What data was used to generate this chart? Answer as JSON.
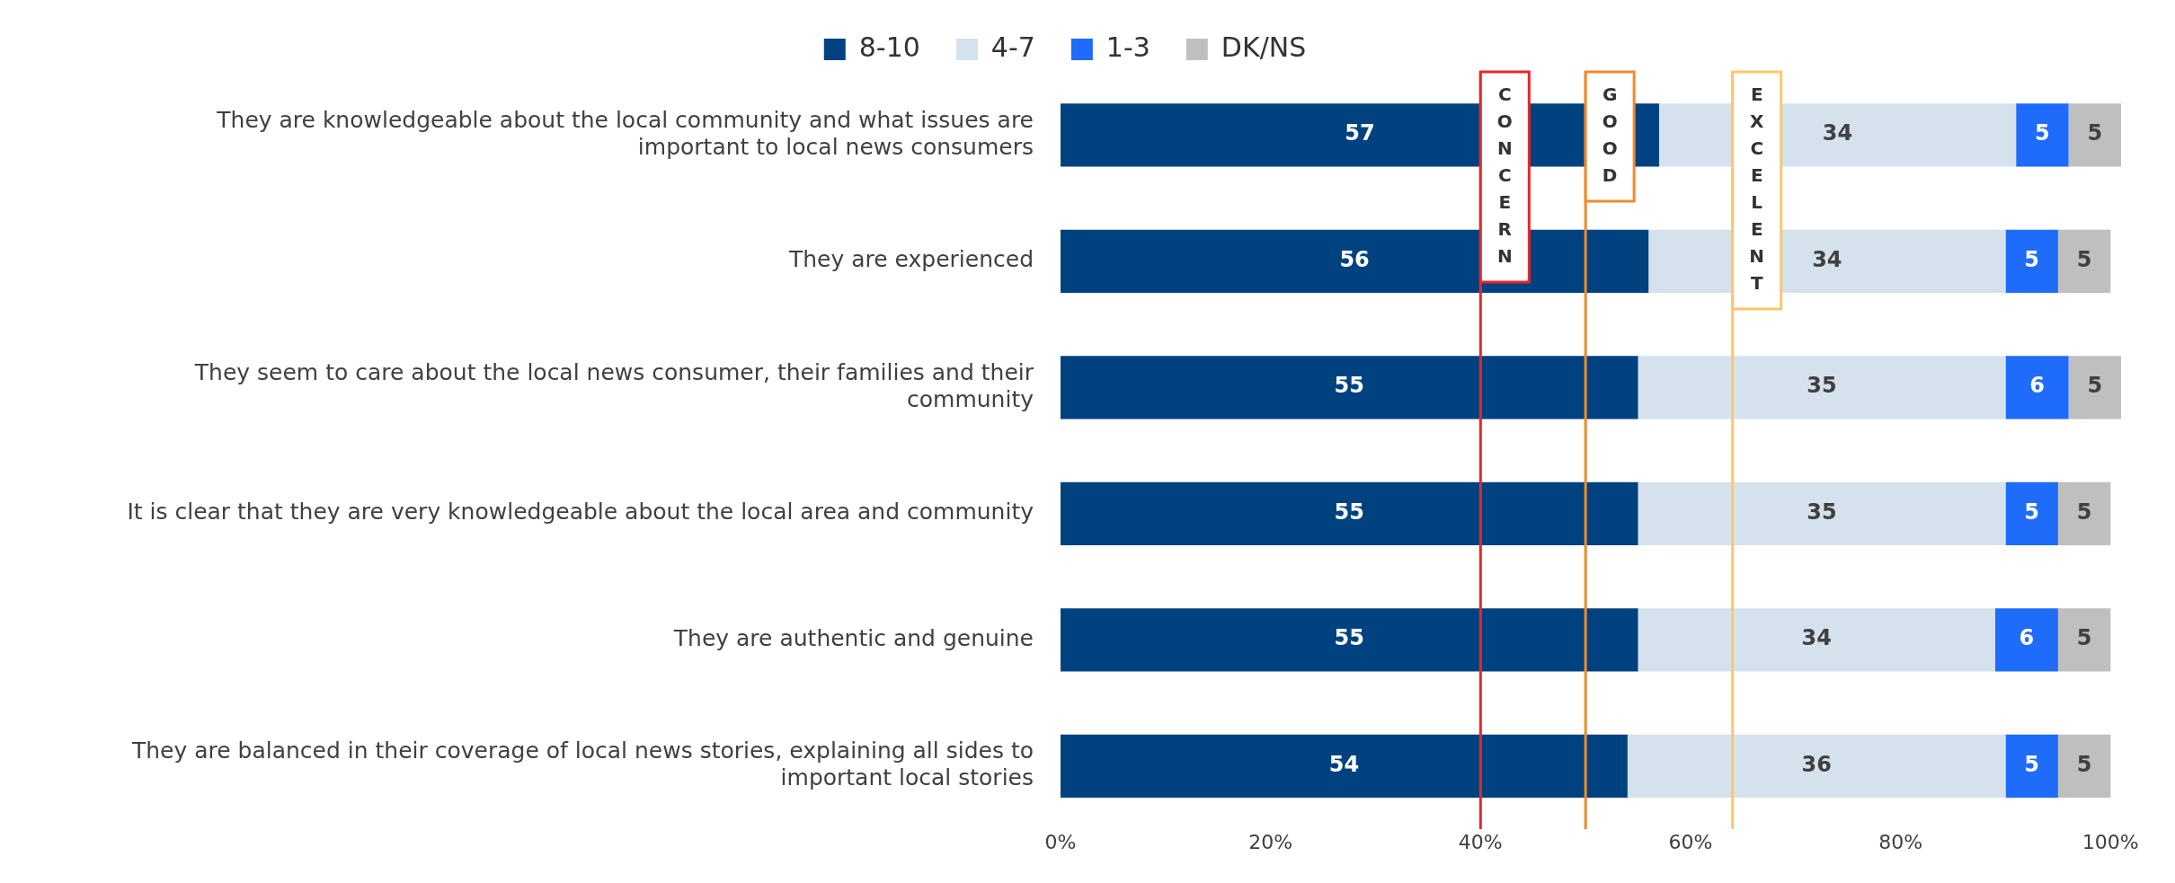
{
  "chart_data": {
    "type": "bar",
    "orientation": "horizontal",
    "stacked": true,
    "categories": [
      "They are knowledgeable about the local community and what issues are important to local news consumers",
      "They are experienced",
      "They seem to care about the local news consumer, their families and their community",
      "It is clear that they are very knowledgeable about the local area and community",
      "They are authentic and genuine ",
      "They are balanced in their coverage of local news stories, explaining all sides to important local stories"
    ],
    "series": [
      {
        "name": "8-10",
        "color": "#004280",
        "values": [
          57,
          56,
          55,
          55,
          55,
          54
        ]
      },
      {
        "name": "4-7",
        "color": "#d5e2ed",
        "values": [
          34,
          34,
          35,
          35,
          34,
          36
        ]
      },
      {
        "name": "1-3",
        "color": "#1f6bfa",
        "values": [
          5,
          5,
          6,
          5,
          6,
          5
        ]
      },
      {
        "name": "DK/NS",
        "color": "#bfbfbf",
        "values": [
          5,
          5,
          5,
          5,
          5,
          5
        ]
      }
    ],
    "data_labels": true,
    "xlim": [
      0,
      101
    ],
    "xticks": [
      {
        "value": 0,
        "label": "0%"
      },
      {
        "value": 20,
        "label": "20%"
      },
      {
        "value": 40,
        "label": "40%"
      },
      {
        "value": 60,
        "label": "60%"
      },
      {
        "value": 80,
        "label": "80%"
      },
      {
        "value": 100,
        "label": "100%"
      }
    ],
    "ref_lines": [
      {
        "axis": "x",
        "value": 40,
        "label": "CONCERN",
        "color": "#e8262a"
      },
      {
        "axis": "x",
        "value": 50,
        "label": "GOOD",
        "color": "#f08a2c"
      },
      {
        "axis": "x",
        "value": 64,
        "label": "EXCELENT",
        "color": "#fbc76a"
      }
    ],
    "grid": false,
    "legend": "top"
  }
}
